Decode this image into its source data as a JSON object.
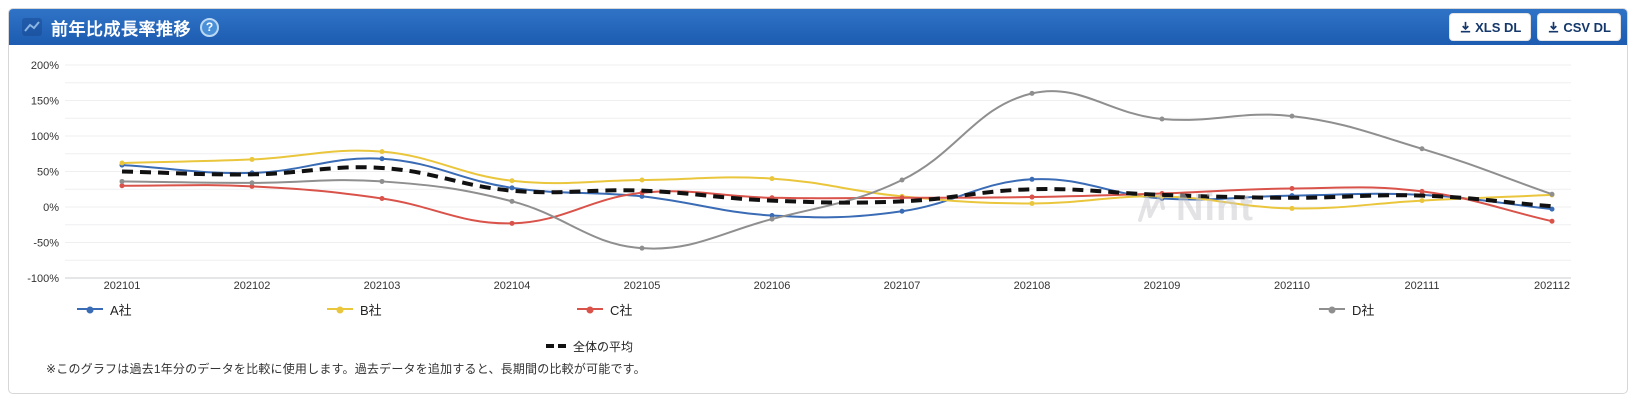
{
  "header": {
    "title": "前年比成長率推移",
    "help_label": "?",
    "xls_button": "XLS DL",
    "csv_button": "CSV DL"
  },
  "colors": {
    "header_top": "#2f73c7",
    "header_bottom": "#1d5cb0",
    "button_text": "#14386b",
    "grid": "#efeff2",
    "axis_baseline": "#c9ccd1",
    "tick_text": "#333333"
  },
  "chart_data": {
    "type": "line",
    "title": "前年比成長率推移",
    "categories": [
      "202101",
      "202102",
      "202103",
      "202104",
      "202105",
      "202106",
      "202107",
      "202108",
      "202109",
      "202110",
      "202111",
      "202112"
    ],
    "series": [
      {
        "name": "A社",
        "color": "#3a6bb5",
        "dashed": false,
        "values": [
          59,
          48,
          68,
          27,
          15,
          -12,
          -6,
          39,
          12,
          16,
          17,
          -3
        ]
      },
      {
        "name": "B社",
        "color": "#eac63d",
        "dashed": false,
        "values": [
          62,
          67,
          78,
          37,
          38,
          40,
          15,
          5,
          15,
          -2,
          9,
          17
        ]
      },
      {
        "name": "C社",
        "color": "#d9534a",
        "dashed": false,
        "values": [
          30,
          29,
          12,
          -23,
          20,
          13,
          13,
          14,
          19,
          26,
          22,
          -20
        ]
      },
      {
        "name": "D社",
        "color": "#8f8f8f",
        "dashed": false,
        "values": [
          36,
          34,
          36,
          8,
          -58,
          -17,
          38,
          160,
          124,
          128,
          82,
          18
        ]
      },
      {
        "name": "全体の平均",
        "color": "#111111",
        "dashed": true,
        "values": [
          50,
          46,
          55,
          23,
          23,
          9,
          8,
          25,
          17,
          13,
          16,
          1
        ]
      }
    ],
    "ylim": [
      -100,
      200
    ],
    "yticks": [
      200,
      150,
      100,
      50,
      0,
      -50,
      -100
    ],
    "ytick_suffix": "%",
    "grid": true,
    "legend_position": "bottom"
  },
  "watermark": {
    "text": "Nint"
  },
  "footnote": "※このグラフは過去1年分のデータを比較に使用します。過去データを追加すると、長期間の比較が可能です。"
}
